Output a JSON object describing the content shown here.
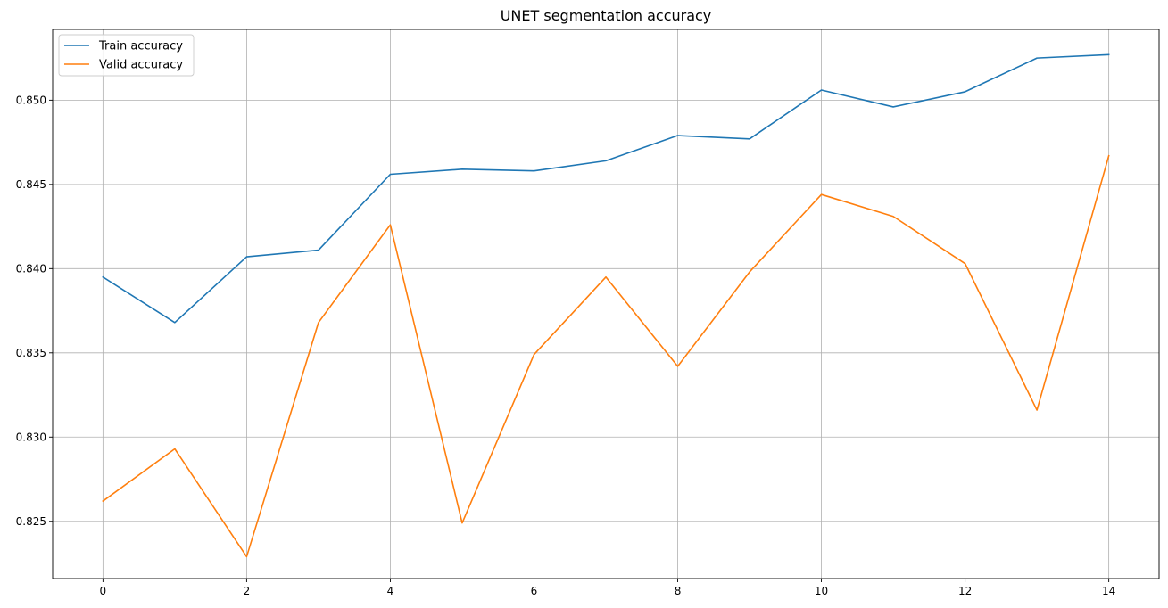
{
  "chart_data": {
    "type": "line",
    "title": "UNET segmentation accuracy",
    "xlabel": "",
    "ylabel": "",
    "x": [
      0,
      1,
      2,
      3,
      4,
      5,
      6,
      7,
      8,
      9,
      10,
      11,
      12,
      13,
      14
    ],
    "xlim": [
      -0.7,
      14.7
    ],
    "ylim": [
      0.8216,
      0.8542
    ],
    "x_ticks": [
      0,
      2,
      4,
      6,
      8,
      10,
      12,
      14
    ],
    "x_tick_labels": [
      "0",
      "2",
      "4",
      "6",
      "8",
      "10",
      "12",
      "14"
    ],
    "y_ticks": [
      0.825,
      0.83,
      0.835,
      0.84,
      0.845,
      0.85
    ],
    "y_tick_labels": [
      "0.825",
      "0.830",
      "0.835",
      "0.840",
      "0.845",
      "0.850"
    ],
    "grid": true,
    "legend_position": "top-left",
    "series": [
      {
        "name": "Train accuracy",
        "color": "#1f77b4",
        "values": [
          0.8395,
          0.8368,
          0.8407,
          0.8411,
          0.8456,
          0.8459,
          0.8458,
          0.8464,
          0.8479,
          0.8477,
          0.8506,
          0.8496,
          0.8505,
          0.8525,
          0.8527
        ]
      },
      {
        "name": "Valid accuracy",
        "color": "#ff7f0e",
        "values": [
          0.8262,
          0.8293,
          0.8229,
          0.8368,
          0.8426,
          0.8249,
          0.8349,
          0.8395,
          0.8342,
          0.8398,
          0.8444,
          0.8431,
          0.8403,
          0.8316,
          0.8467
        ]
      }
    ]
  }
}
